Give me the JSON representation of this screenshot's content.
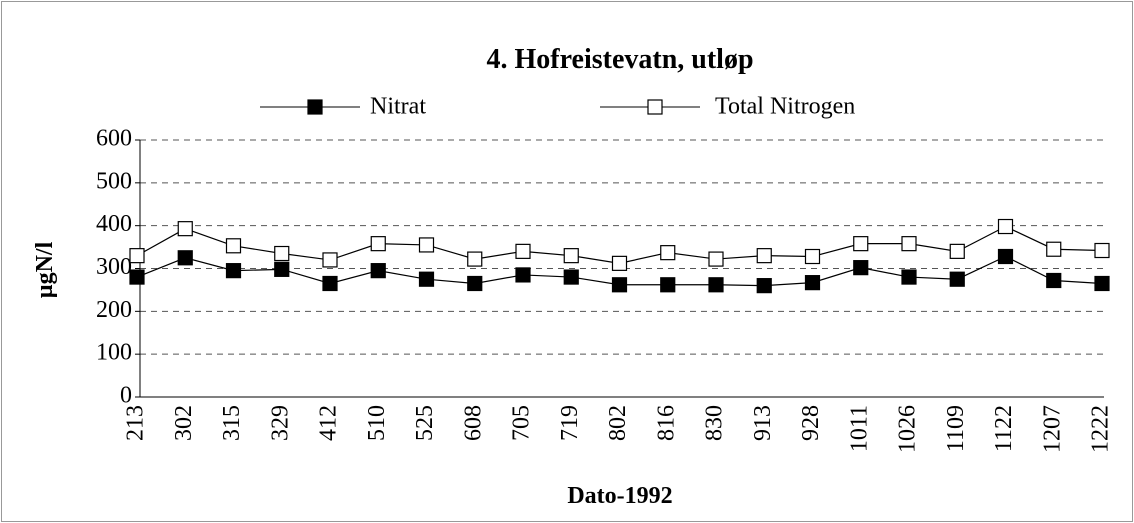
{
  "chart_data": {
    "type": "line",
    "title": "4. Hofreistevatn, utløp",
    "y_label": "µgN/l",
    "x_label": "Dato-1992",
    "categories": [
      "213",
      "302",
      "315",
      "329",
      "412",
      "510",
      "525",
      "608",
      "705",
      "719",
      "802",
      "816",
      "830",
      "913",
      "928",
      "1011",
      "1026",
      "1109",
      "1122",
      "1207",
      "1222"
    ],
    "series": [
      {
        "name": "Nitrat",
        "color": "#000000",
        "marker": "filled-square",
        "values": [
          280,
          325,
          295,
          298,
          265,
          295,
          275,
          265,
          285,
          280,
          262,
          262,
          262,
          260,
          267,
          302,
          280,
          275,
          328,
          272,
          265
        ]
      },
      {
        "name": "Total Nitrogen",
        "color": "#000000",
        "marker": "open-square",
        "values": [
          330,
          393,
          353,
          335,
          320,
          358,
          355,
          322,
          340,
          330,
          312,
          337,
          322,
          330,
          328,
          358,
          358,
          340,
          398,
          345,
          342
        ]
      }
    ],
    "ylim": [
      0,
      600
    ],
    "yticks": [
      0,
      100,
      200,
      300,
      400,
      500,
      600
    ],
    "grid": true
  }
}
